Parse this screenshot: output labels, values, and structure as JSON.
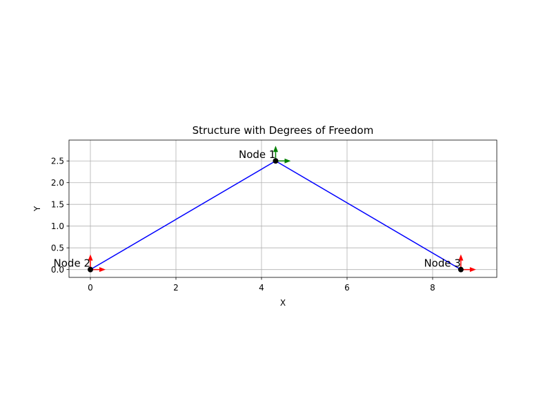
{
  "chart_data": {
    "type": "line",
    "title": "Structure with Degrees of Freedom",
    "xlabel": "X",
    "ylabel": "Y",
    "xlim": [
      -0.5,
      9.5
    ],
    "ylim": [
      -0.18,
      2.98
    ],
    "xticks": [
      0,
      2,
      4,
      6,
      8
    ],
    "xtick_labels": [
      "0",
      "2",
      "4",
      "6",
      "8"
    ],
    "yticks": [
      0.0,
      0.5,
      1.0,
      1.5,
      2.0,
      2.5
    ],
    "ytick_labels": [
      "0.0",
      "0.5",
      "1.0",
      "1.5",
      "2.0",
      "2.5"
    ],
    "grid": true,
    "nodes": [
      {
        "label": "Node 1",
        "x": 4.33,
        "y": 2.5,
        "dof_color": "#008000"
      },
      {
        "label": "Node 2",
        "x": 0.0,
        "y": 0.0,
        "dof_color": "#ff0000"
      },
      {
        "label": "Node 3",
        "x": 8.66,
        "y": 0.0,
        "dof_color": "#ff0000"
      }
    ],
    "members": [
      {
        "from": 1,
        "to": 0
      },
      {
        "from": 0,
        "to": 2
      }
    ],
    "colors": {
      "member": "#0000ff",
      "node": "#000000",
      "grid": "#b0b0b0"
    }
  }
}
